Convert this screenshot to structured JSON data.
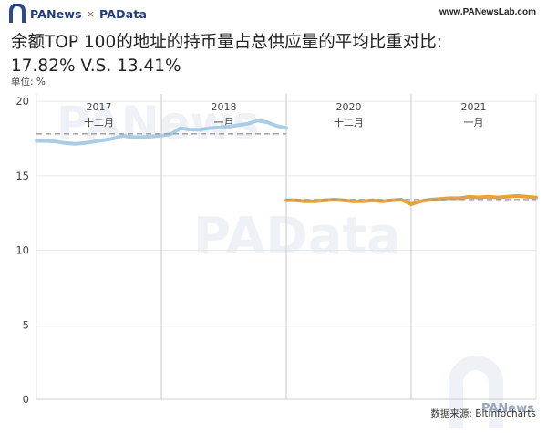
{
  "header": {
    "brand_left": "PANews",
    "brand_sep": "×",
    "brand_right": "PAData",
    "site_url": "www.PANewsLab.com"
  },
  "title_line1": "余额TOP 100的地址的持币量占总供应量的平均比重对比:",
  "title_line2": "17.82% V.S. 13.41%",
  "unit_label": "单位: %",
  "source_label": "数据来源: Bitinfocharts",
  "watermarks": {
    "top": "PANews",
    "middle": "PAData",
    "bottom": "PANews"
  },
  "colors": {
    "series_2017": "#a9cde6",
    "series_2020": "#e8a23a",
    "avg_line": "#9a9a9a",
    "grid": "#e6e6e6",
    "watermark": "#eef1f6"
  },
  "chart_data": {
    "type": "line",
    "y_ticks": [
      0,
      5,
      10,
      15,
      20
    ],
    "ylim": [
      0,
      20.5
    ],
    "y_unit": "%",
    "panels": [
      {
        "year": "2017",
        "month": "十二月"
      },
      {
        "year": "2018",
        "month": "一月"
      },
      {
        "year": "2020",
        "month": "十二月"
      },
      {
        "year": "2021",
        "month": "一月"
      }
    ],
    "series": [
      {
        "period": "2017-12 ~ 2018-01",
        "panels": [
          0,
          1
        ],
        "average": 17.82,
        "values": [
          17.35,
          17.35,
          17.3,
          17.2,
          17.15,
          17.2,
          17.3,
          17.4,
          17.5,
          17.7,
          17.6,
          17.6,
          17.65,
          17.7,
          17.8,
          18.2,
          18.1,
          18.1,
          18.2,
          18.25,
          18.3,
          18.4,
          18.5,
          18.7,
          18.6,
          18.35,
          18.2
        ]
      },
      {
        "period": "2020-12 ~ 2021-01",
        "panels": [
          2,
          3
        ],
        "average": 13.41,
        "values": [
          13.35,
          13.35,
          13.3,
          13.3,
          13.35,
          13.4,
          13.35,
          13.3,
          13.3,
          13.35,
          13.3,
          13.35,
          13.4,
          13.1,
          13.3,
          13.4,
          13.45,
          13.5,
          13.5,
          13.6,
          13.55,
          13.6,
          13.55,
          13.6,
          13.65,
          13.6,
          13.55
        ]
      }
    ]
  }
}
